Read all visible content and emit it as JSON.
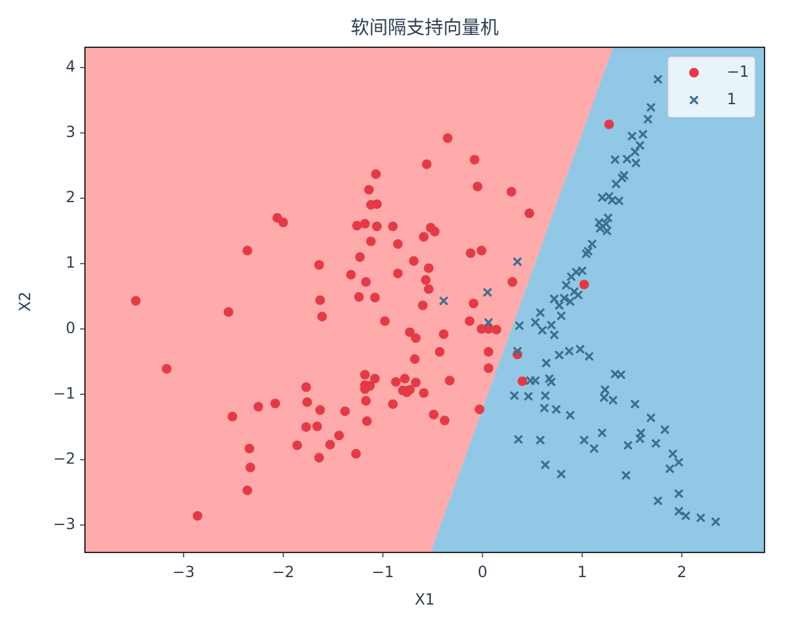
{
  "chart_data": {
    "type": "scatter",
    "title": "软间隔支持向量机",
    "x_label": "X1",
    "y_label": "X2",
    "xlim": [
      -3.99,
      2.83
    ],
    "ylim": [
      -3.42,
      4.31
    ],
    "xticks": [
      {
        "value": -3,
        "label": "−3"
      },
      {
        "value": -2,
        "label": "−2"
      },
      {
        "value": -1,
        "label": "−1"
      },
      0,
      1,
      2
    ],
    "yticks": [
      {
        "value": -3,
        "label": "−3"
      },
      {
        "value": -2,
        "label": "−2"
      },
      {
        "value": -1,
        "label": "−1"
      },
      0,
      1,
      2,
      3,
      4
    ],
    "legend": "upper right",
    "grid": false,
    "decision_boundary": {
      "x": [
        -0.52,
        1.31
      ],
      "y": [
        -3.42,
        4.31
      ]
    },
    "region_colors": [
      "#ffabab",
      "#90c8e5"
    ],
    "series": [
      {
        "name": "−1",
        "color": "#e63946",
        "marker": "circle",
        "x": [
          -3.48,
          -3.17,
          -2.86,
          -2.55,
          -2.51,
          -2.36,
          -2.36,
          -2.34,
          -2.33,
          -2.25,
          -2.08,
          -2.06,
          -2.0,
          -1.86,
          -1.77,
          -1.76,
          -1.77,
          -1.66,
          -1.64,
          -1.64,
          -1.63,
          -1.63,
          -1.61,
          -1.53,
          -1.44,
          -1.38,
          -1.32,
          -1.27,
          -1.26,
          -1.24,
          -1.23,
          -1.18,
          -1.17,
          -1.18,
          -1.18,
          -1.18,
          -1.17,
          -1.16,
          -1.14,
          -1.13,
          -1.12,
          -1.12,
          -1.08,
          -1.08,
          -1.06,
          -1.06,
          -1.07,
          -0.98,
          -0.9,
          -0.9,
          -0.87,
          -0.85,
          -0.85,
          -0.8,
          -0.78,
          -0.76,
          -0.73,
          -0.73,
          -0.69,
          -0.68,
          -0.67,
          -0.67,
          -0.59,
          -0.59,
          -0.6,
          -0.57,
          -0.56,
          -0.54,
          -0.54,
          -0.52,
          -0.49,
          -0.48,
          -0.43,
          -0.39,
          -0.38,
          -0.35,
          -0.33,
          -0.13,
          -0.12,
          -0.09,
          -0.08,
          -0.05,
          -0.03,
          -0.01,
          -0.01,
          0.06,
          0.06,
          0.06,
          0.14,
          0.29,
          0.3,
          0.35,
          0.4,
          0.47,
          1.02,
          1.27
        ],
        "y": [
          0.43,
          -0.61,
          -2.86,
          0.26,
          -1.34,
          1.2,
          -2.47,
          -1.83,
          -2.12,
          -1.19,
          -1.14,
          1.7,
          1.63,
          -1.78,
          -0.89,
          -1.12,
          -1.5,
          -1.49,
          -1.97,
          0.98,
          0.44,
          -1.24,
          0.19,
          -1.77,
          -1.63,
          -1.26,
          0.83,
          -1.91,
          1.58,
          0.49,
          1.1,
          1.61,
          0.72,
          -0.7,
          -0.86,
          -0.92,
          -1.1,
          -1.41,
          2.13,
          -0.87,
          1.9,
          1.34,
          -0.76,
          0.48,
          1.57,
          1.91,
          2.37,
          0.12,
          1.57,
          -1.15,
          -0.81,
          1.3,
          0.85,
          -0.94,
          -0.76,
          -0.97,
          -0.05,
          -0.93,
          1.04,
          -0.46,
          -0.82,
          -0.14,
          -0.98,
          1.41,
          0.36,
          0.75,
          2.52,
          0.93,
          0.61,
          1.55,
          -1.31,
          1.49,
          -0.35,
          -0.08,
          -1.4,
          2.92,
          -0.79,
          0.12,
          1.16,
          0.39,
          2.59,
          2.18,
          -1.23,
          1.2,
          0.0,
          0.0,
          -0.35,
          -0.6,
          -0.01,
          2.1,
          0.72,
          -0.39,
          -0.8,
          1.77,
          0.68,
          3.13
        ]
      },
      {
        "name": "1",
        "color": "#3a6e8f",
        "marker": "x",
        "x": [
          -0.39,
          0.05,
          0.06,
          0.35,
          0.35,
          0.37,
          0.32,
          0.36,
          0.46,
          0.48,
          0.53,
          0.53,
          0.58,
          0.6,
          0.58,
          0.62,
          0.63,
          0.64,
          0.63,
          0.67,
          0.69,
          0.69,
          0.72,
          0.74,
          0.72,
          0.77,
          0.79,
          0.77,
          0.79,
          0.82,
          0.84,
          0.87,
          0.88,
          0.88,
          0.89,
          0.92,
          0.94,
          0.96,
          0.98,
          1.02,
          1.0,
          1.04,
          1.06,
          1.07,
          1.1,
          1.12,
          1.17,
          1.18,
          1.2,
          1.2,
          1.22,
          1.23,
          1.24,
          1.25,
          1.26,
          1.27,
          1.3,
          1.31,
          1.33,
          1.33,
          1.34,
          1.37,
          1.39,
          1.4,
          1.42,
          1.44,
          1.46,
          1.45,
          1.5,
          1.53,
          1.53,
          1.54,
          1.58,
          1.58,
          1.59,
          1.61,
          1.66,
          1.69,
          1.69,
          1.74,
          1.76,
          1.76,
          1.83,
          1.88,
          1.91,
          1.97,
          1.97,
          1.97,
          2.04,
          2.19,
          2.34
        ],
        "y": [
          0.43,
          0.56,
          0.1,
          1.03,
          -0.34,
          0.05,
          -1.02,
          -1.69,
          -1.03,
          -0.79,
          -0.79,
          0.1,
          0.25,
          -0.02,
          -1.7,
          -1.21,
          -1.02,
          -0.52,
          -2.08,
          -0.76,
          -0.81,
          0.06,
          -0.09,
          -1.23,
          0.46,
          -0.4,
          0.2,
          0.36,
          -2.22,
          0.47,
          0.67,
          -0.34,
          -1.32,
          0.42,
          0.8,
          0.57,
          0.87,
          0.52,
          -0.31,
          -1.7,
          0.89,
          1.15,
          1.19,
          -0.42,
          1.3,
          -1.83,
          1.63,
          1.54,
          2.01,
          -1.59,
          -1.05,
          -0.93,
          1.61,
          1.5,
          1.7,
          2.03,
          1.97,
          -1.09,
          2.59,
          -0.69,
          2.22,
          1.96,
          -0.7,
          2.31,
          2.35,
          -2.24,
          -1.78,
          2.6,
          2.95,
          2.71,
          -1.15,
          2.54,
          2.81,
          -1.68,
          -1.59,
          2.98,
          3.21,
          3.39,
          -1.36,
          -1.75,
          3.82,
          -2.63,
          -1.54,
          -2.14,
          -1.91,
          -2.04,
          -2.52,
          -2.79,
          -2.86,
          -2.89,
          -2.95
        ]
      }
    ]
  }
}
